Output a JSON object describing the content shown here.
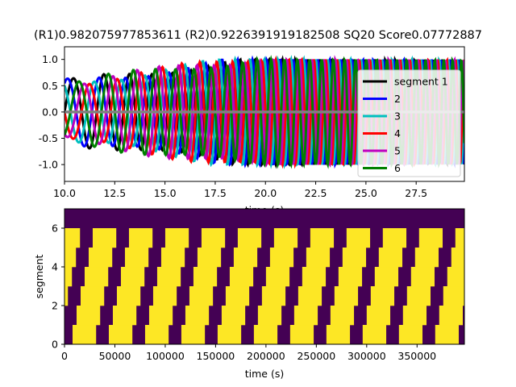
{
  "chart_data": [
    {
      "type": "line",
      "title": "(R1)0.982075977853611 (R2)0.9226391919182508 SQ20 Score0.07772887",
      "xlabel": "time (s)",
      "ylabel": "",
      "xlim": [
        10,
        29.9
      ],
      "ylim": [
        -1.32,
        1.24
      ],
      "xticks": [
        "10.0",
        "12.5",
        "15.0",
        "17.5",
        "20.0",
        "22.5",
        "25.0",
        "27.5"
      ],
      "yticks": [
        "1.0",
        "0.5",
        "0.0",
        "-0.5",
        "-1.0"
      ],
      "legend_position": "right",
      "colors": {
        "segment 1": "#000000",
        "2": "#0000ff",
        "3": "#00bfbf",
        "4": "#ff0000",
        "5": "#bf00bf",
        "6": "#008000",
        "flat": "#808080"
      },
      "series": [
        {
          "name": "segment 1",
          "color": "#000000"
        },
        {
          "name": "2",
          "color": "#0000ff"
        },
        {
          "name": "3",
          "color": "#00bfbf"
        },
        {
          "name": "4",
          "color": "#ff0000"
        },
        {
          "name": "5",
          "color": "#bf00bf"
        },
        {
          "name": "6",
          "color": "#008000"
        }
      ],
      "flat_line": {
        "y": 0.0,
        "color": "#808080"
      }
    },
    {
      "type": "heatmap",
      "title": "",
      "xlabel": "time (s)",
      "ylabel": "segment",
      "xlim": [
        0,
        397000
      ],
      "ylim": [
        0,
        7
      ],
      "xticks": [
        "0",
        "50000",
        "100000",
        "150000",
        "200000",
        "250000",
        "300000",
        "350000"
      ],
      "yticks": [
        "0",
        "2",
        "4",
        "6"
      ],
      "colors": {
        "on": "#fde725",
        "off": "#440154"
      },
      "rows": [
        {
          "segment": 0,
          "period": 36000,
          "duty": 0.65,
          "phase": 8000
        },
        {
          "segment": 1,
          "period": 36000,
          "duty": 0.65,
          "phase": 12000
        },
        {
          "segment": 2,
          "period": 36000,
          "duty": 0.65,
          "phase": 16000
        },
        {
          "segment": 3,
          "period": 36000,
          "duty": 0.65,
          "phase": 20000
        },
        {
          "segment": 4,
          "period": 36000,
          "duty": 0.65,
          "phase": 24000
        },
        {
          "segment": 5,
          "period": 36000,
          "duty": 0.65,
          "phase": 28000
        },
        {
          "segment": 6,
          "period": 36000,
          "duty": 0.0,
          "phase": 0
        }
      ]
    }
  ]
}
